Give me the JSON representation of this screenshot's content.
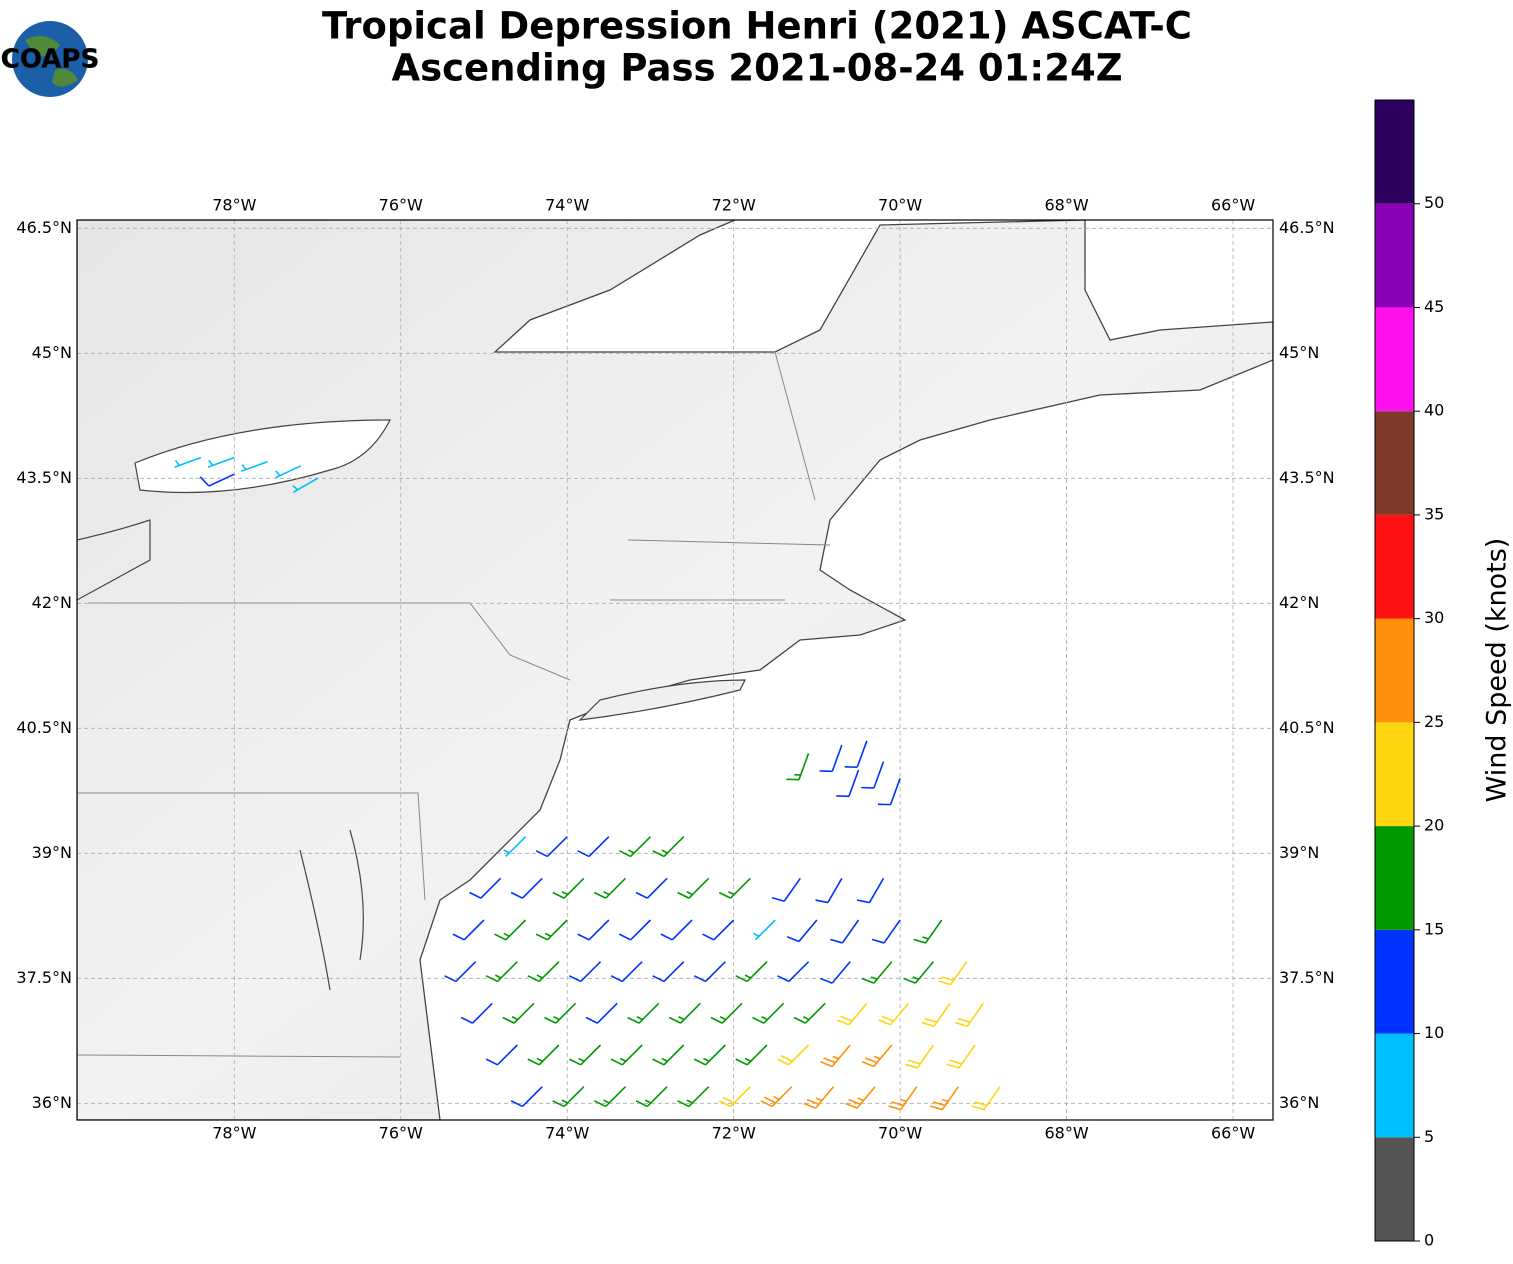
{
  "chart_data": {
    "type": "barbs",
    "title_line1": "Tropical Depression Henri (2021) ASCAT-C",
    "title_line2": "Ascending Pass 2021-08-24 01:24Z",
    "logo": "COAPS",
    "xlim": [
      -79.89,
      -65.52
    ],
    "ylim": [
      35.8,
      46.6
    ],
    "grid": true,
    "xticks": [
      {
        "value": -78,
        "label": "78°W"
      },
      {
        "value": -76,
        "label": "76°W"
      },
      {
        "value": -74,
        "label": "74°W"
      },
      {
        "value": -72,
        "label": "72°W"
      },
      {
        "value": -70,
        "label": "70°W"
      },
      {
        "value": -68,
        "label": "68°W"
      },
      {
        "value": -66,
        "label": "66°W"
      }
    ],
    "yticks": [
      {
        "value": 36,
        "label": "36°N"
      },
      {
        "value": 37.5,
        "label": "37.5°N"
      },
      {
        "value": 39,
        "label": "39°N"
      },
      {
        "value": 40.5,
        "label": "40.5°N"
      },
      {
        "value": 42,
        "label": "42°N"
      },
      {
        "value": 43.5,
        "label": "43.5°N"
      },
      {
        "value": 45,
        "label": "45°N"
      },
      {
        "value": 46.5,
        "label": "46.5°N"
      }
    ],
    "colorbar": {
      "label": "Wind Speed (knots)",
      "lim": [
        0,
        55
      ],
      "bounds": [
        0,
        5,
        10,
        15,
        20,
        25,
        30,
        35,
        40,
        45,
        50,
        55
      ],
      "colors": [
        "#555555",
        "#00bfff",
        "#0033ff",
        "#009900",
        "#ffd510",
        "#ff900c",
        "#ff1111",
        "#803a2a",
        "#ff10f0",
        "#8a00b8",
        "#2e0060"
      ],
      "ticks": [
        0,
        5,
        10,
        15,
        20,
        25,
        30,
        35,
        40,
        45,
        50
      ]
    },
    "barbs": [
      [
        -78.4,
        43.75,
        7,
        250
      ],
      [
        -78.0,
        43.75,
        8,
        250
      ],
      [
        -77.6,
        43.7,
        7,
        250
      ],
      [
        -77.2,
        43.65,
        8,
        245
      ],
      [
        -78.0,
        43.55,
        12,
        245
      ],
      [
        -77.0,
        43.5,
        7,
        240
      ],
      [
        -71.1,
        40.2,
        17,
        200
      ],
      [
        -70.7,
        40.3,
        12,
        200
      ],
      [
        -70.4,
        40.35,
        12,
        200
      ],
      [
        -70.2,
        40.1,
        12,
        200
      ],
      [
        -70.5,
        40.0,
        12,
        200
      ],
      [
        -70.0,
        39.9,
        13,
        200
      ],
      [
        -74.5,
        39.2,
        8,
        225
      ],
      [
        -74.0,
        39.2,
        12,
        225
      ],
      [
        -73.5,
        39.2,
        13,
        225
      ],
      [
        -73.0,
        39.2,
        17,
        225
      ],
      [
        -72.6,
        39.2,
        18,
        225
      ],
      [
        -74.8,
        38.7,
        12,
        225
      ],
      [
        -74.3,
        38.7,
        13,
        225
      ],
      [
        -73.8,
        38.7,
        16,
        225
      ],
      [
        -73.3,
        38.7,
        18,
        225
      ],
      [
        -72.8,
        38.7,
        12,
        225
      ],
      [
        -72.3,
        38.7,
        17,
        225
      ],
      [
        -71.8,
        38.7,
        18,
        225
      ],
      [
        -71.2,
        38.7,
        13,
        215
      ],
      [
        -70.7,
        38.7,
        12,
        210
      ],
      [
        -70.2,
        38.7,
        12,
        210
      ],
      [
        -75.0,
        38.2,
        12,
        225
      ],
      [
        -74.5,
        38.2,
        16,
        225
      ],
      [
        -74.0,
        38.2,
        18,
        225
      ],
      [
        -73.5,
        38.2,
        13,
        225
      ],
      [
        -73.0,
        38.2,
        12,
        225
      ],
      [
        -72.5,
        38.2,
        12,
        225
      ],
      [
        -72.0,
        38.2,
        12,
        225
      ],
      [
        -71.5,
        38.2,
        8,
        225
      ],
      [
        -71.0,
        38.2,
        12,
        220
      ],
      [
        -70.5,
        38.2,
        12,
        215
      ],
      [
        -70.0,
        38.2,
        13,
        215
      ],
      [
        -69.5,
        38.2,
        17,
        215
      ],
      [
        -75.1,
        37.7,
        12,
        225
      ],
      [
        -74.6,
        37.7,
        17,
        225
      ],
      [
        -74.1,
        37.7,
        18,
        225
      ],
      [
        -73.6,
        37.7,
        12,
        225
      ],
      [
        -73.1,
        37.7,
        12,
        225
      ],
      [
        -72.6,
        37.7,
        13,
        225
      ],
      [
        -72.1,
        37.7,
        12,
        225
      ],
      [
        -71.6,
        37.7,
        16,
        225
      ],
      [
        -71.1,
        37.7,
        13,
        225
      ],
      [
        -70.6,
        37.7,
        13,
        220
      ],
      [
        -70.1,
        37.7,
        17,
        220
      ],
      [
        -69.6,
        37.7,
        18,
        220
      ],
      [
        -69.2,
        37.7,
        22,
        215
      ],
      [
        -74.9,
        37.2,
        13,
        225
      ],
      [
        -74.4,
        37.2,
        17,
        225
      ],
      [
        -73.9,
        37.2,
        18,
        225
      ],
      [
        -73.4,
        37.2,
        12,
        225
      ],
      [
        -72.9,
        37.2,
        17,
        225
      ],
      [
        -72.4,
        37.2,
        16,
        225
      ],
      [
        -71.9,
        37.2,
        18,
        225
      ],
      [
        -71.4,
        37.2,
        17,
        225
      ],
      [
        -70.9,
        37.2,
        18,
        225
      ],
      [
        -70.4,
        37.2,
        22,
        220
      ],
      [
        -69.9,
        37.2,
        22,
        220
      ],
      [
        -69.4,
        37.2,
        23,
        215
      ],
      [
        -69.0,
        37.2,
        24,
        215
      ],
      [
        -74.6,
        36.7,
        13,
        225
      ],
      [
        -74.1,
        36.7,
        17,
        225
      ],
      [
        -73.6,
        36.7,
        18,
        225
      ],
      [
        -73.1,
        36.7,
        17,
        225
      ],
      [
        -72.6,
        36.7,
        18,
        225
      ],
      [
        -72.1,
        36.7,
        17,
        225
      ],
      [
        -71.6,
        36.7,
        18,
        225
      ],
      [
        -71.1,
        36.7,
        23,
        225
      ],
      [
        -70.6,
        36.7,
        26,
        220
      ],
      [
        -70.1,
        36.7,
        27,
        220
      ],
      [
        -69.6,
        36.7,
        24,
        215
      ],
      [
        -69.1,
        36.7,
        23,
        215
      ],
      [
        -74.3,
        36.2,
        12,
        225
      ],
      [
        -73.8,
        36.2,
        17,
        225
      ],
      [
        -73.3,
        36.2,
        18,
        225
      ],
      [
        -72.8,
        36.2,
        17,
        225
      ],
      [
        -72.3,
        36.2,
        18,
        225
      ],
      [
        -71.8,
        36.2,
        22,
        225
      ],
      [
        -71.3,
        36.2,
        27,
        225
      ],
      [
        -70.8,
        36.2,
        28,
        220
      ],
      [
        -70.3,
        36.2,
        27,
        220
      ],
      [
        -69.8,
        36.2,
        28,
        215
      ],
      [
        -69.3,
        36.2,
        26,
        215
      ],
      [
        -68.8,
        36.2,
        23,
        215
      ]
    ]
  }
}
